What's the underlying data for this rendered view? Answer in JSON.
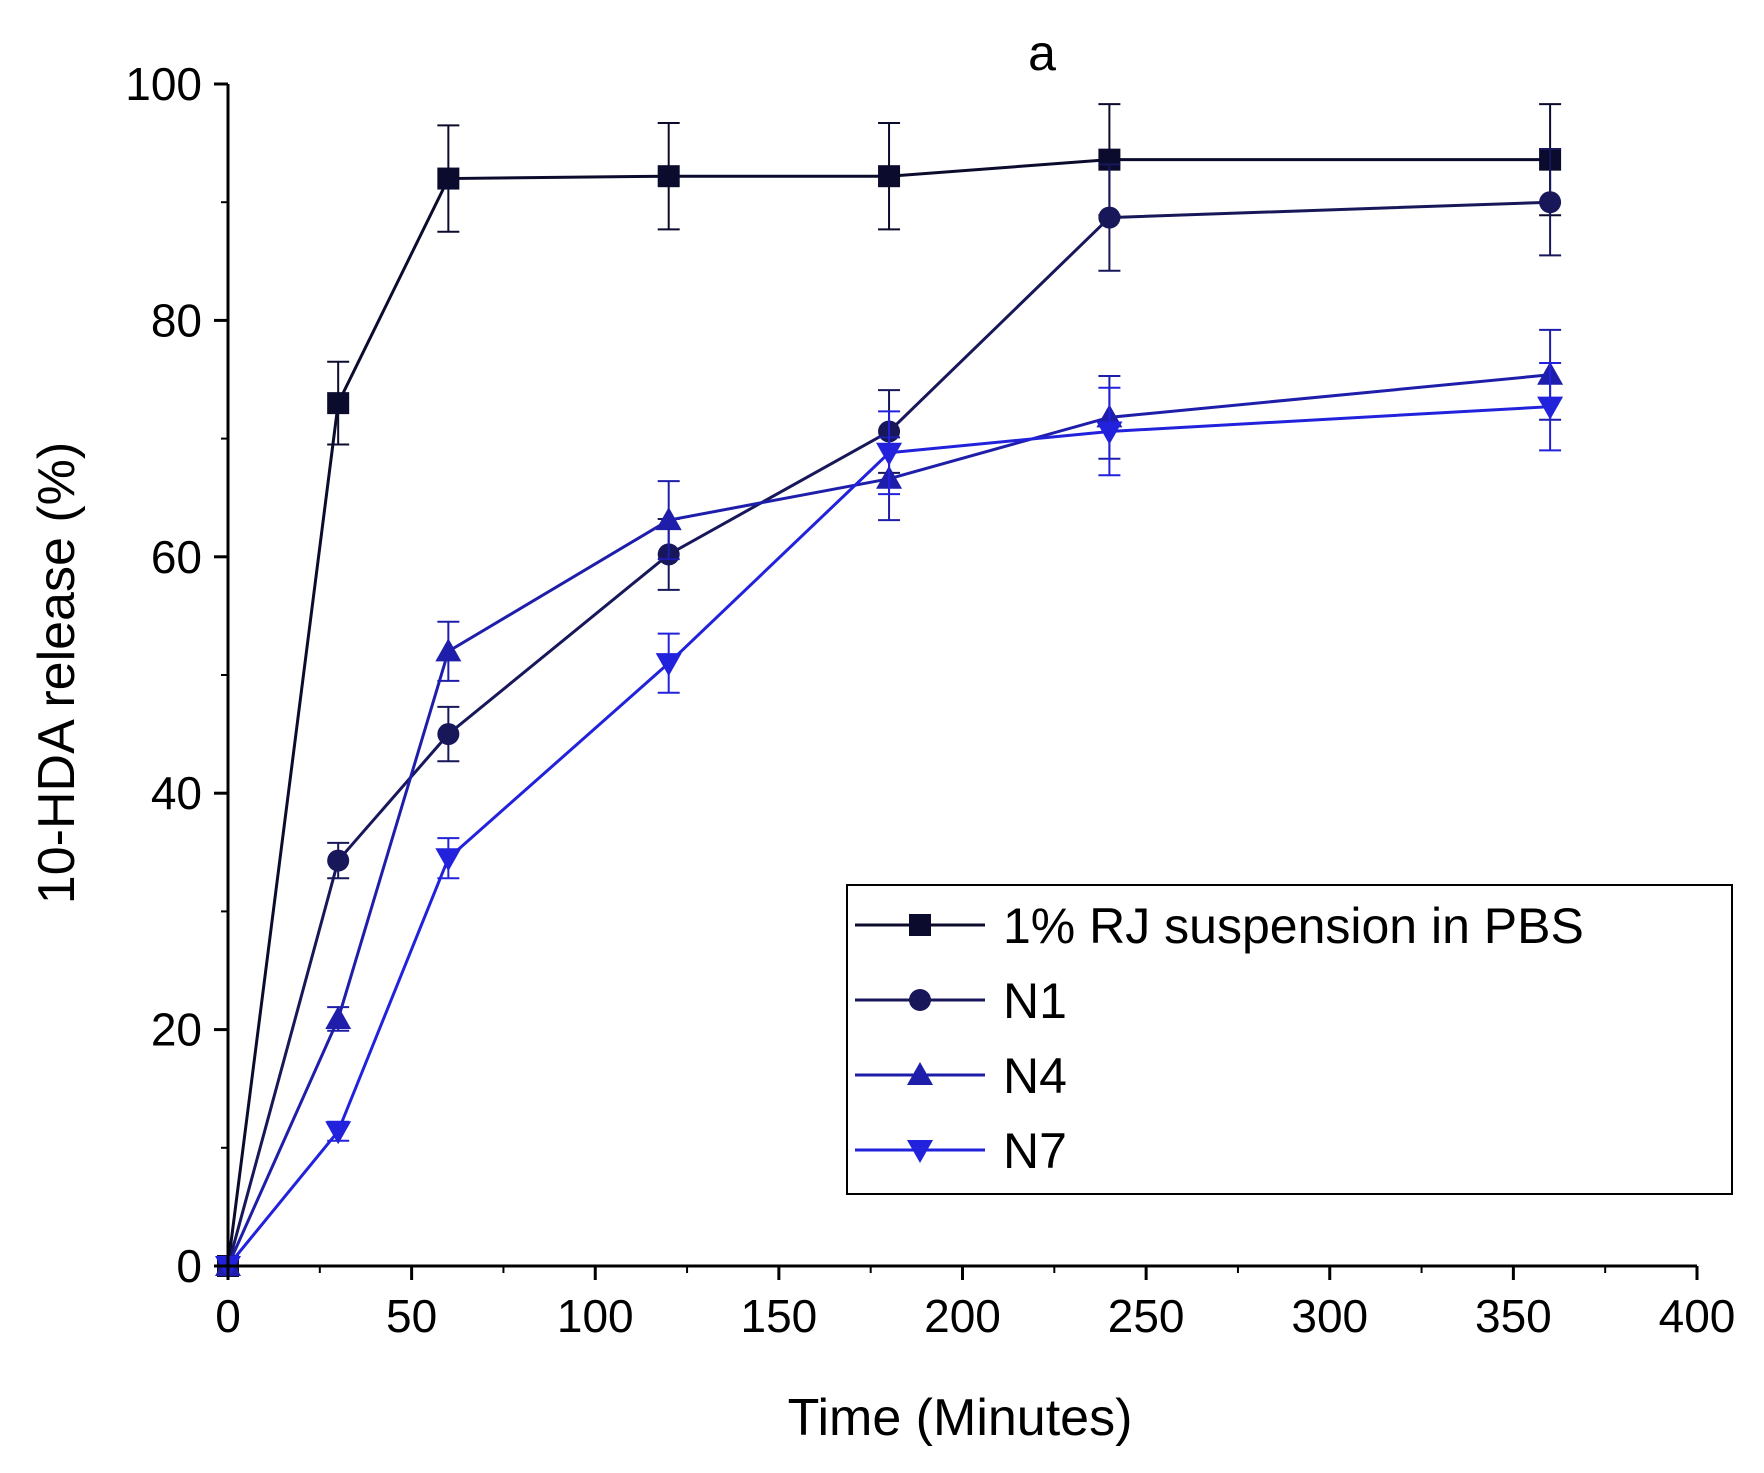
{
  "chart_data": {
    "type": "line",
    "title": "a",
    "xlabel": "Time (Minutes)",
    "ylabel": "10-HDA release (%)",
    "xlim": [
      0,
      400
    ],
    "ylim": [
      0,
      100
    ],
    "xticks": [
      0,
      50,
      100,
      150,
      200,
      250,
      300,
      350,
      400
    ],
    "yticks": [
      0,
      20,
      40,
      60,
      80,
      100
    ],
    "x": [
      0,
      30,
      60,
      120,
      180,
      240,
      360
    ],
    "legend_position": "bottom-right",
    "series": [
      {
        "name": "1% RJ suspension in PBS",
        "marker": "square",
        "color": "#0b0b2e",
        "values": [
          0,
          73,
          92,
          92.2,
          92.2,
          93.6,
          93.6
        ],
        "errors": [
          0,
          3.5,
          4.5,
          4.5,
          4.5,
          4.7,
          4.7
        ]
      },
      {
        "name": "N1",
        "marker": "circle",
        "color": "#17175a",
        "values": [
          0,
          34.3,
          45,
          60.2,
          70.6,
          88.7,
          90
        ],
        "errors": [
          0,
          1.5,
          2.3,
          3,
          3.5,
          4.5,
          4.5
        ]
      },
      {
        "name": "N4",
        "marker": "triangle-up",
        "color": "#1e1eaa",
        "values": [
          0,
          20.9,
          52,
          63.1,
          66.6,
          71.8,
          75.4
        ],
        "errors": [
          0,
          1,
          2.5,
          3.3,
          3.5,
          3.5,
          3.8
        ]
      },
      {
        "name": "N7",
        "marker": "triangle-down",
        "color": "#2222dd",
        "values": [
          0,
          11.4,
          34.5,
          51,
          68.8,
          70.6,
          72.7
        ],
        "errors": [
          0,
          0.8,
          1.7,
          2.5,
          3.5,
          3.7,
          3.7
        ]
      }
    ]
  }
}
